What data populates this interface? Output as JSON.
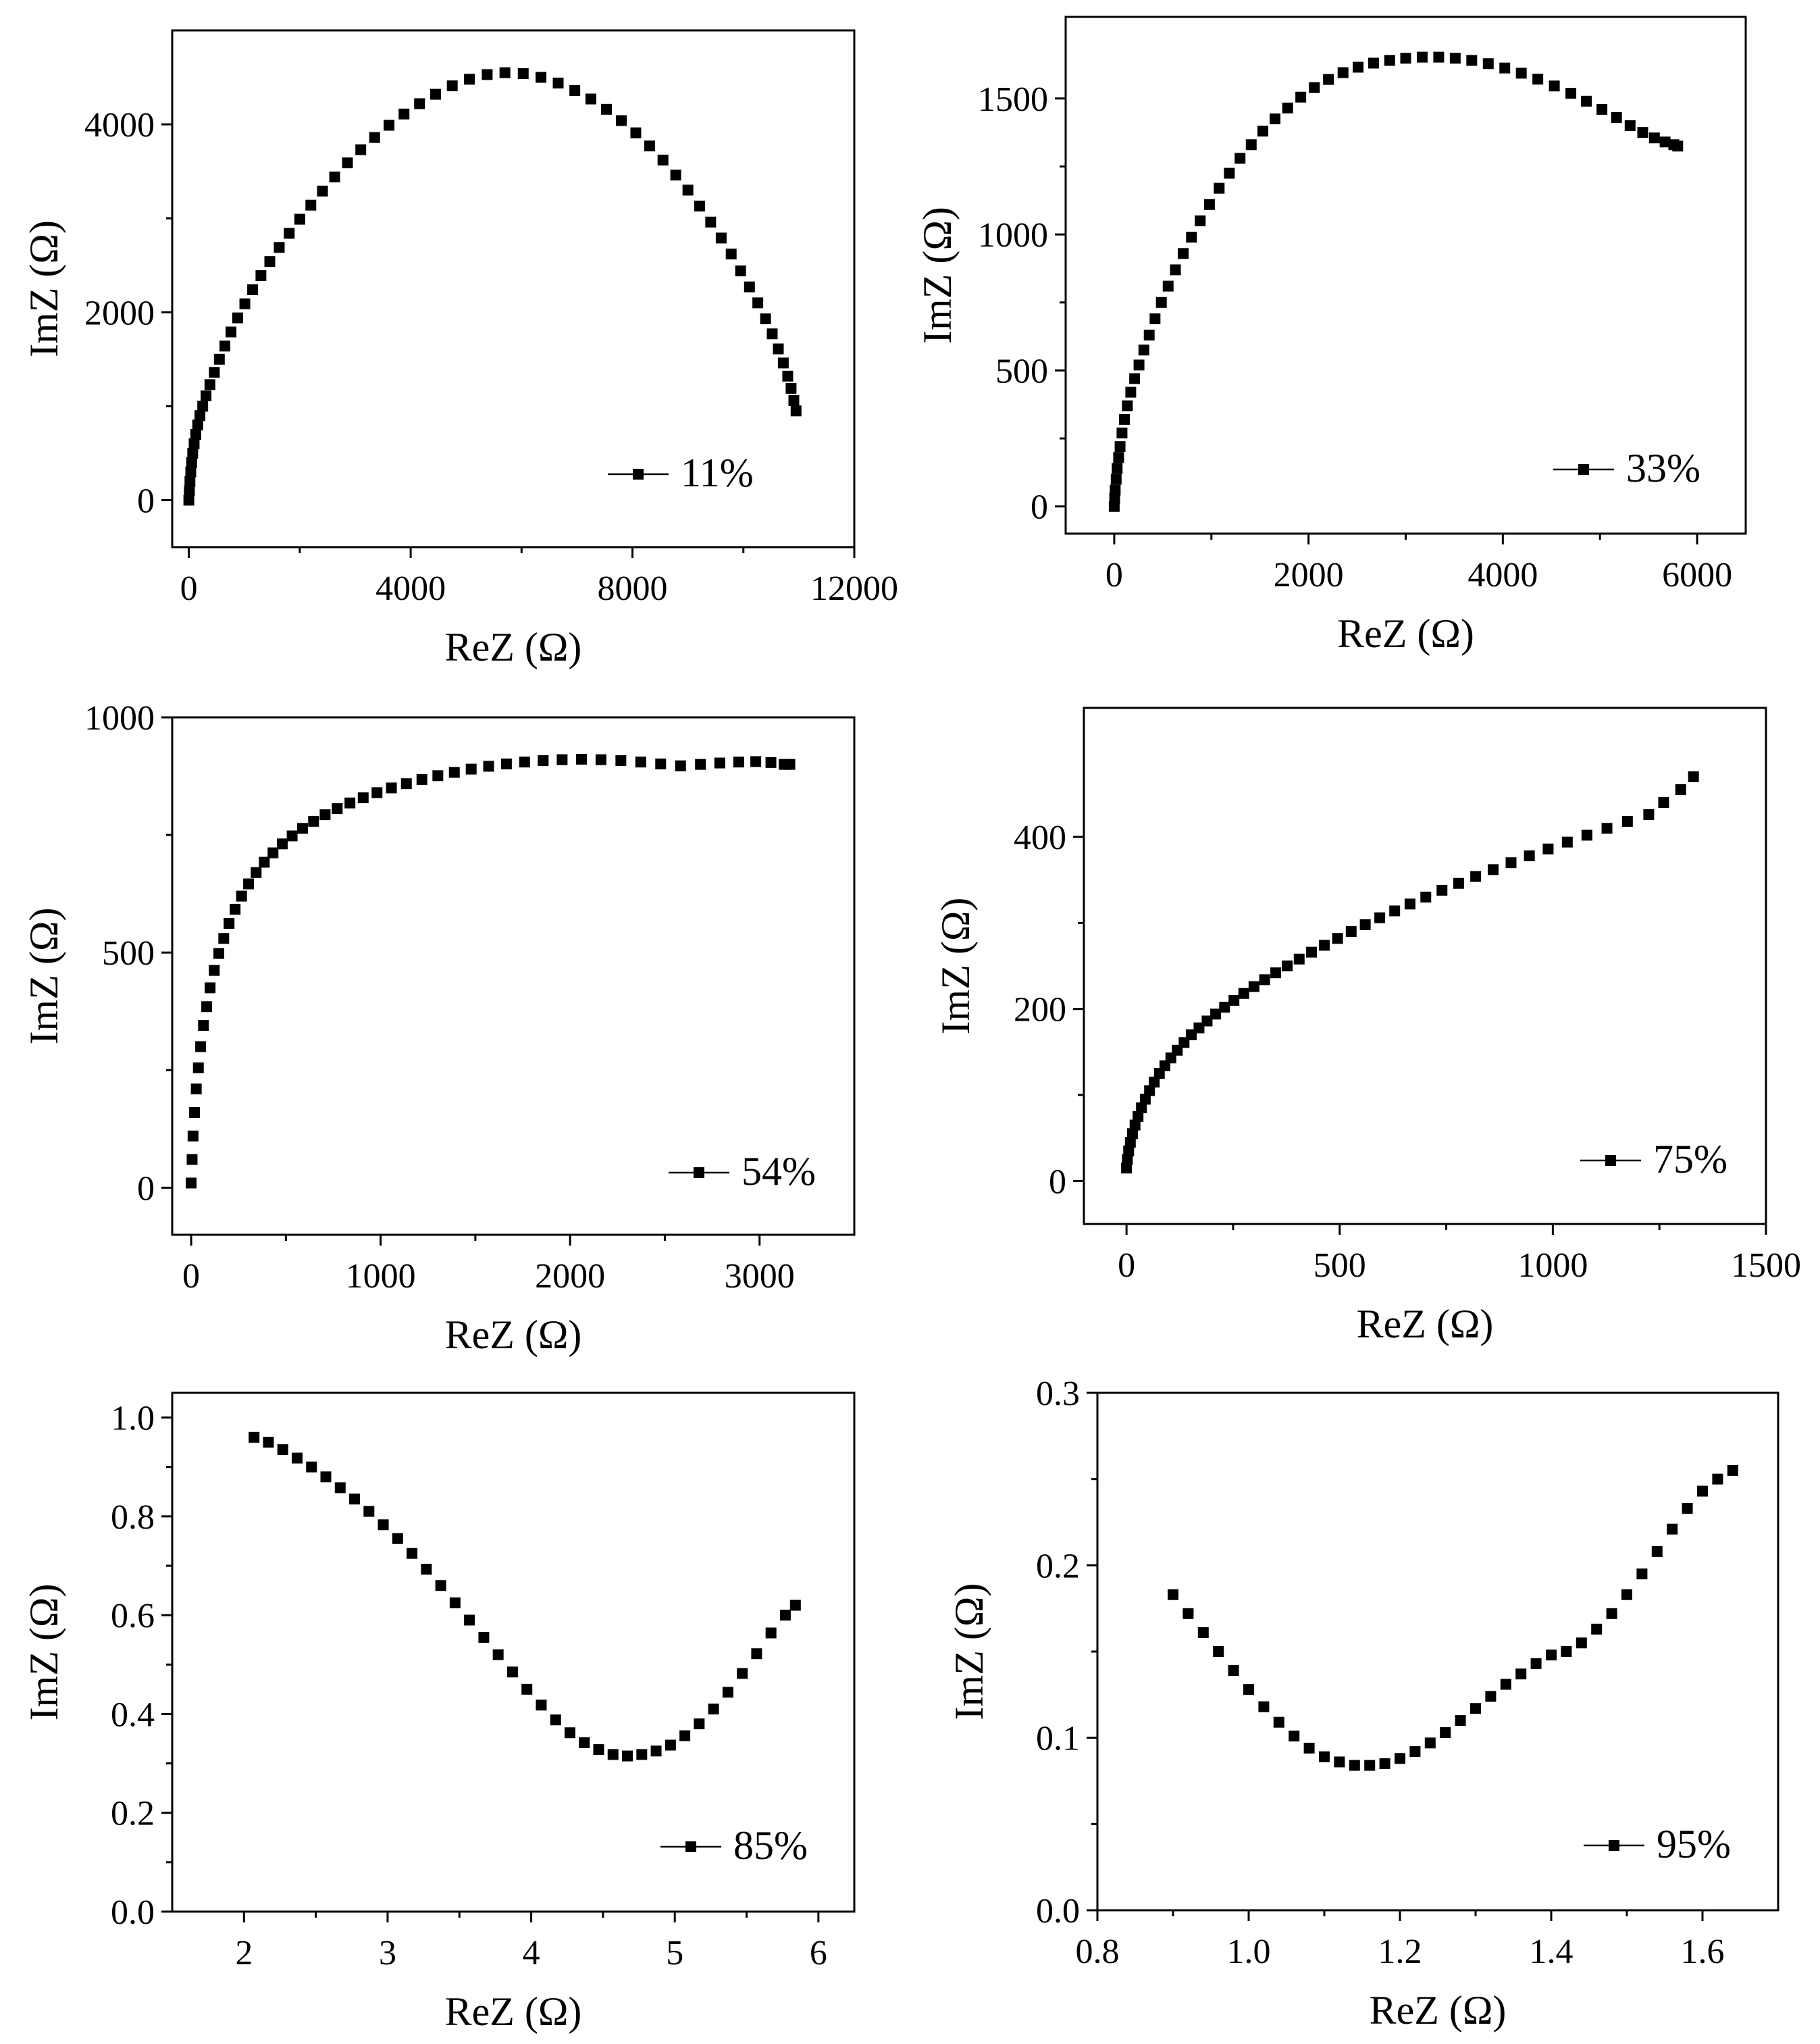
{
  "figure": {
    "marker_color": "#000000",
    "marker_shape": "square"
  },
  "chart_data": [
    {
      "type": "scatter",
      "series_name": "11%",
      "xlabel": "ReZ (Ω)",
      "ylabel": "ImZ (Ω)",
      "xlim": [
        -300,
        12000
      ],
      "ylim": [
        -500,
        5000
      ],
      "xticks": [
        0,
        4000,
        8000,
        12000
      ],
      "xtick_labels": [
        "0",
        "4000",
        "8000",
        "12000"
      ],
      "yticks": [
        0,
        2000,
        4000
      ],
      "ytick_labels": [
        "0",
        "2000",
        "4000"
      ],
      "x": [
        0,
        10,
        20,
        35,
        50,
        70,
        95,
        125,
        160,
        200,
        250,
        310,
        380,
        460,
        550,
        650,
        760,
        880,
        1010,
        1150,
        1300,
        1460,
        1630,
        1810,
        2000,
        2200,
        2410,
        2630,
        2860,
        3100,
        3350,
        3610,
        3880,
        4160,
        4450,
        4750,
        5060,
        5380,
        5700,
        6030,
        6350,
        6660,
        6960,
        7250,
        7530,
        7800,
        8060,
        8310,
        8550,
        8780,
        9000,
        9210,
        9410,
        9600,
        9780,
        9950,
        10110,
        10260,
        10400,
        10520,
        10630,
        10720,
        10800,
        10860,
        10910,
        10950
      ],
      "y": [
        0,
        100,
        200,
        300,
        400,
        500,
        600,
        700,
        800,
        900,
        1000,
        1110,
        1230,
        1360,
        1500,
        1640,
        1790,
        1940,
        2090,
        2240,
        2390,
        2540,
        2690,
        2840,
        2990,
        3140,
        3290,
        3440,
        3590,
        3730,
        3860,
        3990,
        4110,
        4220,
        4320,
        4410,
        4480,
        4530,
        4550,
        4540,
        4500,
        4440,
        4360,
        4270,
        4160,
        4040,
        3910,
        3770,
        3620,
        3460,
        3300,
        3130,
        2960,
        2790,
        2620,
        2440,
        2270,
        2100,
        1930,
        1770,
        1610,
        1460,
        1320,
        1190,
        1060,
        950
      ]
    },
    {
      "type": "scatter",
      "series_name": "33%",
      "xlabel": "ReZ (Ω)",
      "ylabel": "ImZ (Ω)",
      "xlim": [
        -500,
        6500
      ],
      "ylim": [
        -100,
        1800
      ],
      "xticks": [
        0,
        2000,
        4000,
        6000
      ],
      "xtick_labels": [
        "0",
        "2000",
        "4000",
        "6000"
      ],
      "yticks": [
        0,
        500,
        1000,
        1500
      ],
      "ytick_labels": [
        "0",
        "500",
        "1000",
        "1500"
      ],
      "x": [
        0,
        5,
        10,
        20,
        30,
        45,
        60,
        80,
        105,
        135,
        170,
        210,
        255,
        305,
        360,
        420,
        485,
        555,
        630,
        710,
        795,
        885,
        980,
        1080,
        1185,
        1295,
        1410,
        1530,
        1655,
        1785,
        1920,
        2060,
        2205,
        2355,
        2510,
        2670,
        2835,
        3000,
        3170,
        3340,
        3510,
        3680,
        3850,
        4020,
        4190,
        4360,
        4530,
        4700,
        4860,
        5020,
        5170,
        5310,
        5440,
        5560,
        5670,
        5760,
        5800
      ],
      "y": [
        0,
        30,
        60,
        100,
        140,
        180,
        220,
        270,
        320,
        370,
        420,
        470,
        520,
        575,
        630,
        690,
        750,
        810,
        870,
        930,
        990,
        1050,
        1110,
        1170,
        1225,
        1280,
        1330,
        1380,
        1425,
        1465,
        1505,
        1540,
        1570,
        1595,
        1615,
        1630,
        1640,
        1648,
        1652,
        1652,
        1648,
        1640,
        1628,
        1612,
        1593,
        1571,
        1546,
        1519,
        1490,
        1460,
        1430,
        1400,
        1375,
        1355,
        1340,
        1330,
        1325
      ]
    },
    {
      "type": "scatter",
      "series_name": "54%",
      "xlabel": "ReZ (Ω)",
      "ylabel": "ImZ (Ω)",
      "xlim": [
        -100,
        3500
      ],
      "ylim": [
        -100,
        1000
      ],
      "xticks": [
        0,
        1000,
        2000,
        3000
      ],
      "xtick_labels": [
        "0",
        "1000",
        "2000",
        "3000"
      ],
      "yticks": [
        0,
        500,
        1000
      ],
      "ytick_labels": [
        "0",
        "500",
        "1000"
      ],
      "x": [
        0,
        5,
        10,
        18,
        27,
        38,
        50,
        65,
        82,
        100,
        122,
        146,
        172,
        200,
        232,
        266,
        303,
        343,
        386,
        432,
        481,
        533,
        588,
        646,
        707,
        771,
        838,
        908,
        981,
        1057,
        1136,
        1218,
        1302,
        1389,
        1478,
        1570,
        1664,
        1760,
        1858,
        1958,
        2060,
        2163,
        2268,
        2373,
        2478,
        2583,
        2688,
        2790,
        2890,
        2980,
        3060,
        3130,
        3160
      ],
      "y": [
        10,
        60,
        110,
        160,
        210,
        255,
        300,
        345,
        385,
        425,
        462,
        498,
        530,
        562,
        592,
        620,
        646,
        670,
        692,
        712,
        731,
        748,
        764,
        779,
        793,
        806,
        818,
        829,
        840,
        850,
        859,
        868,
        876,
        883,
        890,
        896,
        901,
        905,
        908,
        910,
        911,
        910,
        908,
        905,
        901,
        897,
        900,
        903,
        905,
        906,
        904,
        900,
        900
      ]
    },
    {
      "type": "scatter",
      "series_name": "75%",
      "xlabel": "ReZ (Ω)",
      "ylabel": "ImZ (Ω)",
      "xlim": [
        -100,
        1500
      ],
      "ylim": [
        -50,
        550
      ],
      "xticks": [
        0,
        500,
        1000,
        1500
      ],
      "xtick_labels": [
        "0",
        "500",
        "1000",
        "1500"
      ],
      "yticks": [
        0,
        200,
        400
      ],
      "ytick_labels": [
        "0",
        "200",
        "400"
      ],
      "x": [
        0,
        2,
        5,
        9,
        14,
        20,
        27,
        35,
        44,
        54,
        65,
        77,
        90,
        104,
        119,
        135,
        152,
        170,
        189,
        209,
        230,
        252,
        275,
        299,
        324,
        350,
        377,
        405,
        434,
        464,
        495,
        527,
        560,
        594,
        629,
        665,
        702,
        740,
        779,
        819,
        860,
        902,
        945,
        989,
        1034,
        1080,
        1127,
        1175,
        1225,
        1260,
        1300,
        1330
      ],
      "y": [
        15,
        25,
        35,
        45,
        55,
        65,
        75,
        85,
        95,
        105,
        115,
        125,
        134,
        143,
        152,
        161,
        170,
        178,
        186,
        194,
        202,
        210,
        218,
        226,
        234,
        242,
        250,
        258,
        266,
        274,
        282,
        290,
        298,
        306,
        314,
        322,
        330,
        338,
        346,
        354,
        362,
        370,
        378,
        386,
        394,
        402,
        410,
        418,
        426,
        440,
        455,
        470
      ]
    },
    {
      "type": "scatter",
      "series_name": "85%",
      "xlabel": "ReZ (Ω)",
      "ylabel": "ImZ (Ω)",
      "xlim": [
        1.5,
        6.25
      ],
      "ylim": [
        0.0,
        1.05
      ],
      "xticks": [
        2,
        3,
        4,
        5,
        6
      ],
      "xtick_labels": [
        "2",
        "3",
        "4",
        "5",
        "6"
      ],
      "yticks": [
        0.0,
        0.2,
        0.4,
        0.6,
        0.8,
        1.0
      ],
      "ytick_labels": [
        "0.0",
        "0.2",
        "0.4",
        "0.6",
        "0.8",
        "1.0"
      ],
      "x": [
        2.07,
        2.17,
        2.27,
        2.37,
        2.47,
        2.57,
        2.67,
        2.77,
        2.87,
        2.97,
        3.07,
        3.17,
        3.27,
        3.37,
        3.47,
        3.57,
        3.67,
        3.77,
        3.87,
        3.97,
        4.07,
        4.17,
        4.27,
        4.37,
        4.47,
        4.57,
        4.67,
        4.77,
        4.87,
        4.97,
        5.07,
        5.17,
        5.27,
        5.37,
        5.47,
        5.57,
        5.67,
        5.77,
        5.84
      ],
      "y": [
        0.96,
        0.95,
        0.935,
        0.918,
        0.9,
        0.88,
        0.858,
        0.835,
        0.81,
        0.783,
        0.755,
        0.725,
        0.693,
        0.66,
        0.625,
        0.59,
        0.555,
        0.52,
        0.485,
        0.45,
        0.418,
        0.388,
        0.362,
        0.342,
        0.328,
        0.318,
        0.315,
        0.318,
        0.325,
        0.337,
        0.356,
        0.38,
        0.41,
        0.444,
        0.482,
        0.522,
        0.564,
        0.6,
        0.62
      ]
    },
    {
      "type": "scatter",
      "series_name": "95%",
      "xlabel": "ReZ (Ω)",
      "ylabel": "ImZ (Ω)",
      "xlim": [
        0.8,
        1.7
      ],
      "ylim": [
        0.0,
        0.3
      ],
      "xticks": [
        0.8,
        1.0,
        1.2,
        1.4,
        1.6
      ],
      "xtick_labels": [
        "0.8",
        "1.0",
        "1.2",
        "1.4",
        "1.6"
      ],
      "yticks": [
        0.0,
        0.1,
        0.2,
        0.3
      ],
      "ytick_labels": [
        "0.0",
        "0.1",
        "0.2",
        "0.3"
      ],
      "x": [
        0.9,
        0.92,
        0.94,
        0.96,
        0.98,
        1.0,
        1.02,
        1.04,
        1.06,
        1.08,
        1.1,
        1.12,
        1.14,
        1.16,
        1.18,
        1.2,
        1.22,
        1.24,
        1.26,
        1.28,
        1.3,
        1.32,
        1.34,
        1.36,
        1.38,
        1.4,
        1.42,
        1.44,
        1.46,
        1.48,
        1.5,
        1.52,
        1.54,
        1.56,
        1.58,
        1.6,
        1.62,
        1.64
      ],
      "y": [
        0.183,
        0.172,
        0.161,
        0.15,
        0.139,
        0.128,
        0.118,
        0.109,
        0.101,
        0.094,
        0.089,
        0.086,
        0.084,
        0.084,
        0.085,
        0.088,
        0.092,
        0.097,
        0.103,
        0.11,
        0.117,
        0.124,
        0.131,
        0.137,
        0.143,
        0.148,
        0.15,
        0.155,
        0.163,
        0.172,
        0.183,
        0.195,
        0.208,
        0.221,
        0.233,
        0.243,
        0.25,
        0.255
      ]
    }
  ]
}
